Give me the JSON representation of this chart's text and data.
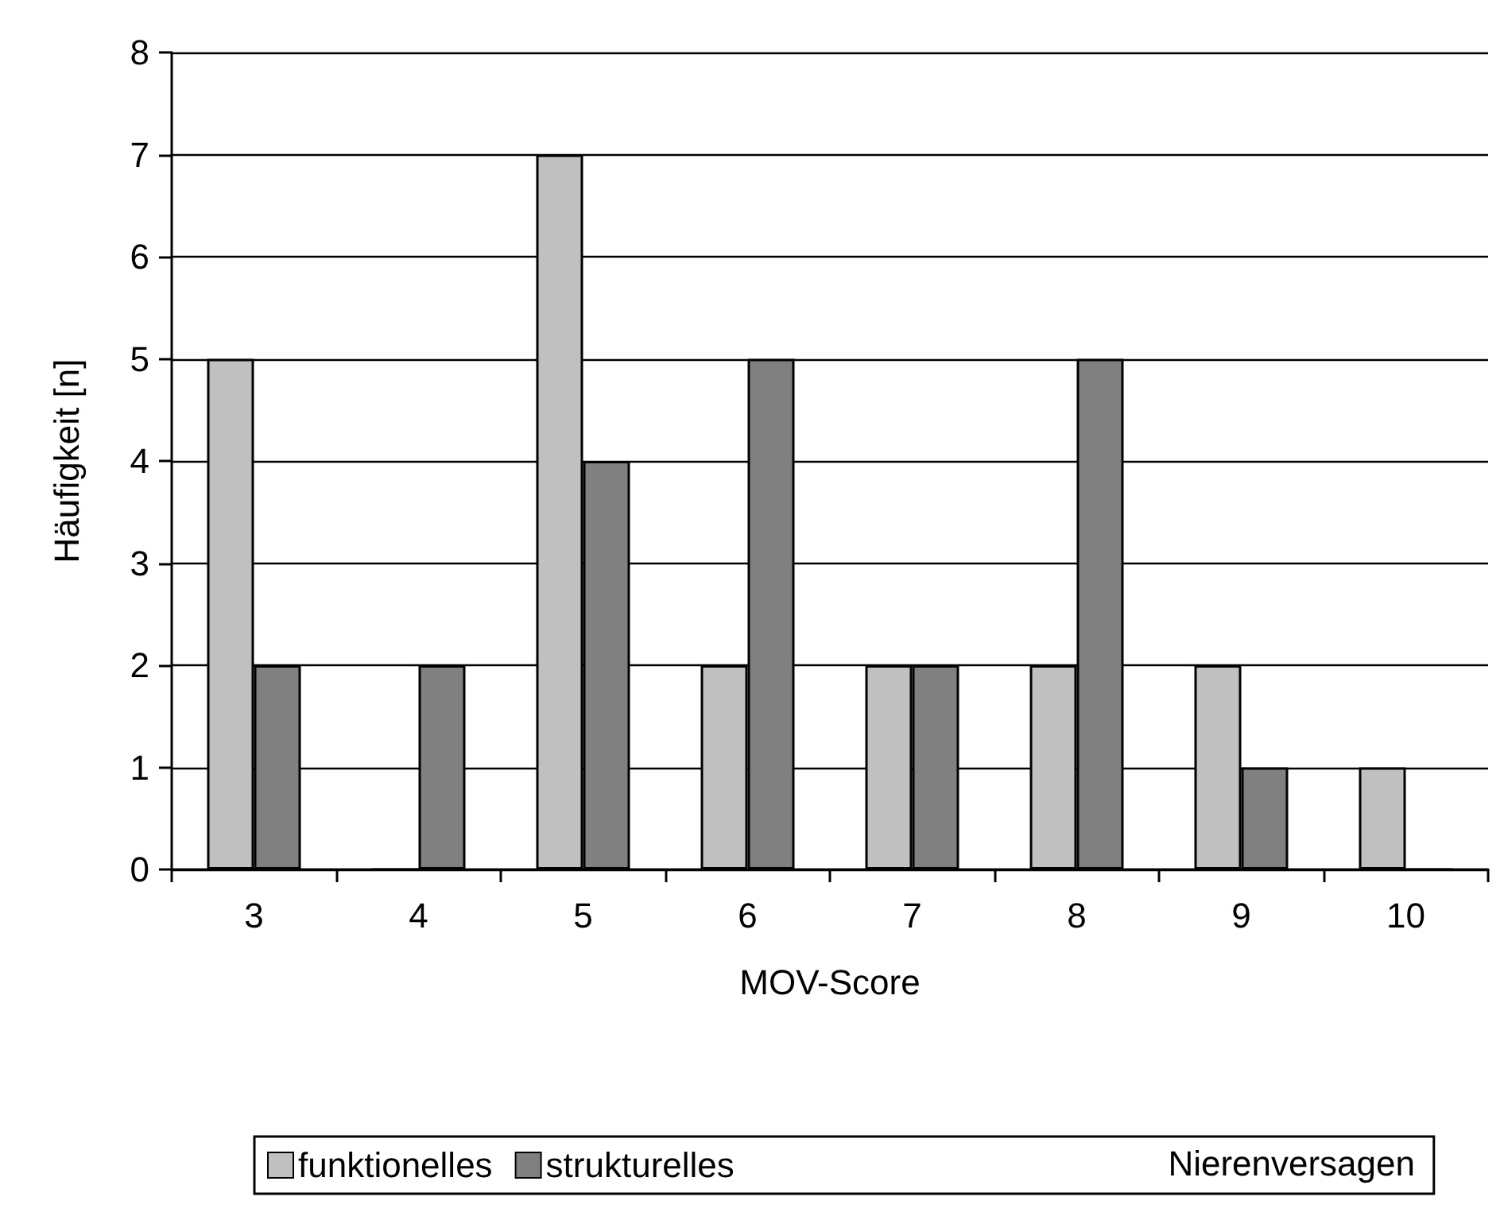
{
  "chart_data": {
    "type": "bar",
    "xlabel": "MOV-Score",
    "ylabel": "Häufigkeit [n]",
    "legend_title": "Nierenversagen",
    "categories": [
      "3",
      "4",
      "5",
      "6",
      "7",
      "8",
      "9",
      "10"
    ],
    "series": [
      {
        "name": "funktionelles",
        "color": "#c0c0c0",
        "values": [
          5,
          0,
          7,
          2,
          2,
          2,
          2,
          1
        ]
      },
      {
        "name": "strukturelles",
        "color": "#808080",
        "values": [
          2,
          2,
          4,
          5,
          2,
          5,
          1,
          0
        ]
      }
    ],
    "ylim": [
      0,
      8
    ],
    "yticks": [
      0,
      1,
      2,
      3,
      4,
      5,
      6,
      7,
      8
    ],
    "grid": "y",
    "legend": "bottom"
  }
}
